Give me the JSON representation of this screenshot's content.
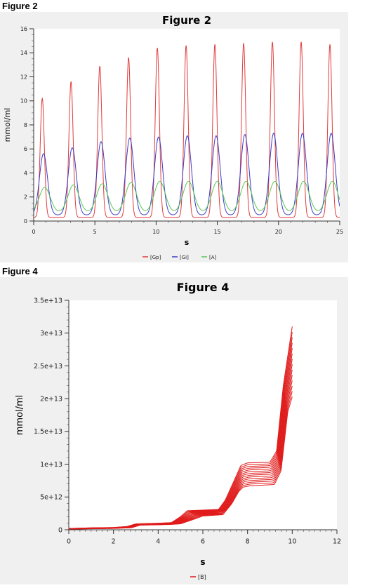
{
  "headings": {
    "fig2": "Figure 2",
    "fig4": "Figure 4"
  },
  "colors": {
    "Gp": "#e03b3b",
    "Gi": "#3b3bc8",
    "A": "#55c855",
    "B": "#e01b1b",
    "panel_bg": "#f0f0f0",
    "plot_bg": "#ffffff"
  },
  "chart_data": [
    {
      "type": "line",
      "title": "Figure 2",
      "xlabel": "s",
      "ylabel": "mmol/ml",
      "xlim": [
        0,
        25
      ],
      "ylim": [
        0,
        16
      ],
      "xticks": [
        0,
        5,
        10,
        15,
        20,
        25
      ],
      "yticks": [
        0,
        2,
        4,
        6,
        8,
        10,
        12,
        14,
        16
      ],
      "legend_position": "bottom",
      "period": 2.35,
      "first_peak_x": 0.7,
      "series": [
        {
          "name": "[Gp]",
          "color": "#e03b3b",
          "baseline": 0.3,
          "width": 0.17,
          "peaks": [
            10.2,
            11.6,
            12.9,
            13.6,
            14.4,
            14.6,
            14.7,
            14.8,
            14.9,
            14.9,
            14.7
          ]
        },
        {
          "name": "[Gi]",
          "color": "#3b3bc8",
          "baseline": 0.5,
          "width": 0.33,
          "peaks": [
            5.6,
            6.1,
            6.6,
            6.9,
            7.0,
            7.1,
            7.1,
            7.2,
            7.3,
            7.3,
            7.3
          ]
        },
        {
          "name": "[A]",
          "color": "#55c855",
          "baseline": 0.7,
          "width": 0.45,
          "peaks": [
            2.8,
            3.0,
            3.1,
            3.2,
            3.3,
            3.3,
            3.3,
            3.3,
            3.3,
            3.3,
            3.3
          ]
        }
      ]
    },
    {
      "type": "line",
      "title": "Figure 4",
      "xlabel": "s",
      "ylabel": "mmol/ml",
      "xlim": [
        0,
        12
      ],
      "ylim": [
        0,
        35000000000000.0
      ],
      "xticks": [
        0,
        2,
        4,
        6,
        8,
        10,
        12
      ],
      "yticks": [
        0,
        5000000000000.0,
        10000000000000.0,
        15000000000000.0,
        20000000000000.0,
        25000000000000.0,
        30000000000000.0,
        35000000000000.0
      ],
      "ytick_labels": [
        "0",
        "5e+12",
        "1e+13",
        "1.5e+13",
        "2e+13",
        "2.5e+13",
        "3e+13",
        "3.5e+13"
      ],
      "legend_position": "bottom",
      "series": [
        {
          "name": "[B]",
          "color": "#e01b1b",
          "trajectory_count": 14,
          "first_trajectory": {
            "x": [
              0,
              1,
              2,
              2.6,
              3,
              4,
              4.6,
              5,
              5.3,
              6,
              6.7,
              7,
              7.4,
              7.7,
              8,
              9,
              9.3,
              9.6,
              10
            ],
            "y": [
              200000000000.0,
              300000000000.0,
              350000000000.0,
              500000000000.0,
              900000000000.0,
              1000000000000.0,
              1100000000000.0,
              2000000000000.0,
              2900000000000.0,
              3000000000000.0,
              3100000000000.0,
              4500000000000.0,
              7500000000000.0,
              9800000000000.0,
              10200000000000.0,
              10300000000000.0,
              12000000000000.0,
              22000000000000.0,
              31000000000000.0
            ]
          },
          "last_trajectory": {
            "x": [
              0,
              1,
              2,
              2.8,
              3.2,
              4.5,
              5,
              5.6,
              6,
              6.9,
              7.3,
              7.6,
              7.8,
              8.1,
              9.2,
              9.5,
              9.8,
              10
            ],
            "y": [
              100000000000.0,
              150000000000.0,
              200000000000.0,
              300000000000.0,
              700000000000.0,
              800000000000.0,
              900000000000.0,
              1600000000000.0,
              2100000000000.0,
              2300000000000.0,
              4000000000000.0,
              5800000000000.0,
              6500000000000.0,
              6700000000000.0,
              6900000000000.0,
              9000000000000.0,
              18000000000000.0,
              20300000000000.0
            ]
          }
        }
      ]
    }
  ]
}
